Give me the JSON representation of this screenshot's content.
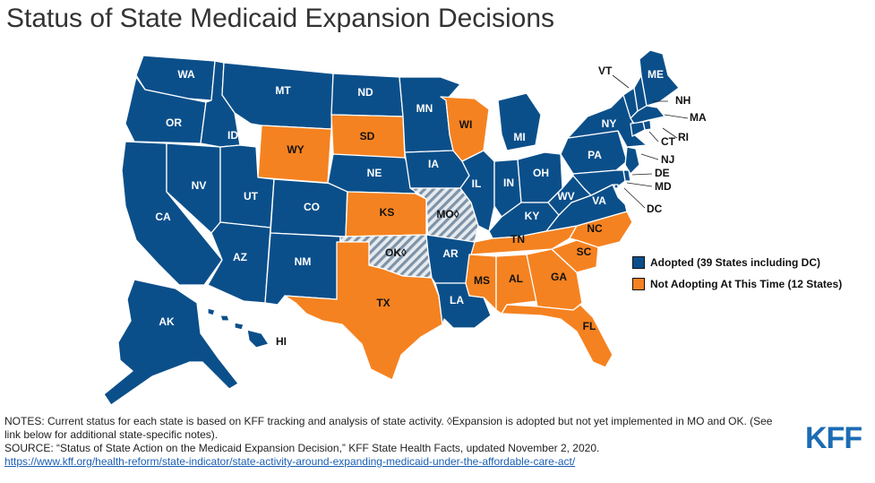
{
  "title": "Status of State Medicaid Expansion Decisions",
  "colors": {
    "adopted": "#0b4f8a",
    "not_adopting": "#f58220",
    "hatch": "#b8c4d0",
    "label_dark": "#111111",
    "label_light": "#ffffff"
  },
  "legend": [
    {
      "key": "adopted",
      "label": "Adopted (39 States including DC)"
    },
    {
      "key": "not_adopting",
      "label": "Not Adopting At This Time (12 States)"
    }
  ],
  "states": [
    {
      "abbr": "WA",
      "status": "adopted"
    },
    {
      "abbr": "OR",
      "status": "adopted"
    },
    {
      "abbr": "CA",
      "status": "adopted"
    },
    {
      "abbr": "NV",
      "status": "adopted"
    },
    {
      "abbr": "ID",
      "status": "adopted"
    },
    {
      "abbr": "MT",
      "status": "adopted"
    },
    {
      "abbr": "WY",
      "status": "not_adopting"
    },
    {
      "abbr": "UT",
      "status": "adopted"
    },
    {
      "abbr": "AZ",
      "status": "adopted"
    },
    {
      "abbr": "CO",
      "status": "adopted"
    },
    {
      "abbr": "NM",
      "status": "adopted"
    },
    {
      "abbr": "ND",
      "status": "adopted"
    },
    {
      "abbr": "SD",
      "status": "not_adopting"
    },
    {
      "abbr": "NE",
      "status": "adopted"
    },
    {
      "abbr": "KS",
      "status": "not_adopting"
    },
    {
      "abbr": "OK",
      "status": "adopted_not_implemented"
    },
    {
      "abbr": "TX",
      "status": "not_adopting"
    },
    {
      "abbr": "MN",
      "status": "adopted"
    },
    {
      "abbr": "IA",
      "status": "adopted"
    },
    {
      "abbr": "MO",
      "status": "adopted_not_implemented"
    },
    {
      "abbr": "AR",
      "status": "adopted"
    },
    {
      "abbr": "LA",
      "status": "adopted"
    },
    {
      "abbr": "WI",
      "status": "not_adopting"
    },
    {
      "abbr": "IL",
      "status": "adopted"
    },
    {
      "abbr": "MI",
      "status": "adopted"
    },
    {
      "abbr": "IN",
      "status": "adopted"
    },
    {
      "abbr": "OH",
      "status": "adopted"
    },
    {
      "abbr": "KY",
      "status": "adopted"
    },
    {
      "abbr": "TN",
      "status": "not_adopting"
    },
    {
      "abbr": "MS",
      "status": "not_adopting"
    },
    {
      "abbr": "AL",
      "status": "not_adopting"
    },
    {
      "abbr": "GA",
      "status": "not_adopting"
    },
    {
      "abbr": "FL",
      "status": "not_adopting"
    },
    {
      "abbr": "SC",
      "status": "not_adopting"
    },
    {
      "abbr": "NC",
      "status": "not_adopting"
    },
    {
      "abbr": "VA",
      "status": "adopted"
    },
    {
      "abbr": "WV",
      "status": "adopted"
    },
    {
      "abbr": "PA",
      "status": "adopted"
    },
    {
      "abbr": "NY",
      "status": "adopted"
    },
    {
      "abbr": "VT",
      "status": "adopted"
    },
    {
      "abbr": "NH",
      "status": "adopted"
    },
    {
      "abbr": "ME",
      "status": "adopted"
    },
    {
      "abbr": "MA",
      "status": "adopted"
    },
    {
      "abbr": "RI",
      "status": "adopted"
    },
    {
      "abbr": "CT",
      "status": "adopted"
    },
    {
      "abbr": "NJ",
      "status": "adopted"
    },
    {
      "abbr": "DE",
      "status": "adopted"
    },
    {
      "abbr": "MD",
      "status": "adopted"
    },
    {
      "abbr": "DC",
      "status": "adopted"
    },
    {
      "abbr": "AK",
      "status": "adopted"
    },
    {
      "abbr": "HI",
      "status": "adopted"
    }
  ],
  "notes": "NOTES: Current status for each state is based on KFF tracking and analysis of state activity. ◊Expansion is adopted but not yet implemented in MO and OK. (See link below for additional state-specific notes).",
  "source": "SOURCE: “Status of State Action on the Medicaid Expansion Decision,” KFF State Health Facts, updated November 2, 2020.",
  "link": "https://www.kff.org/health-reform/state-indicator/state-activity-around-expanding-medicaid-under-the-affordable-care-act/",
  "logo": "KFF"
}
